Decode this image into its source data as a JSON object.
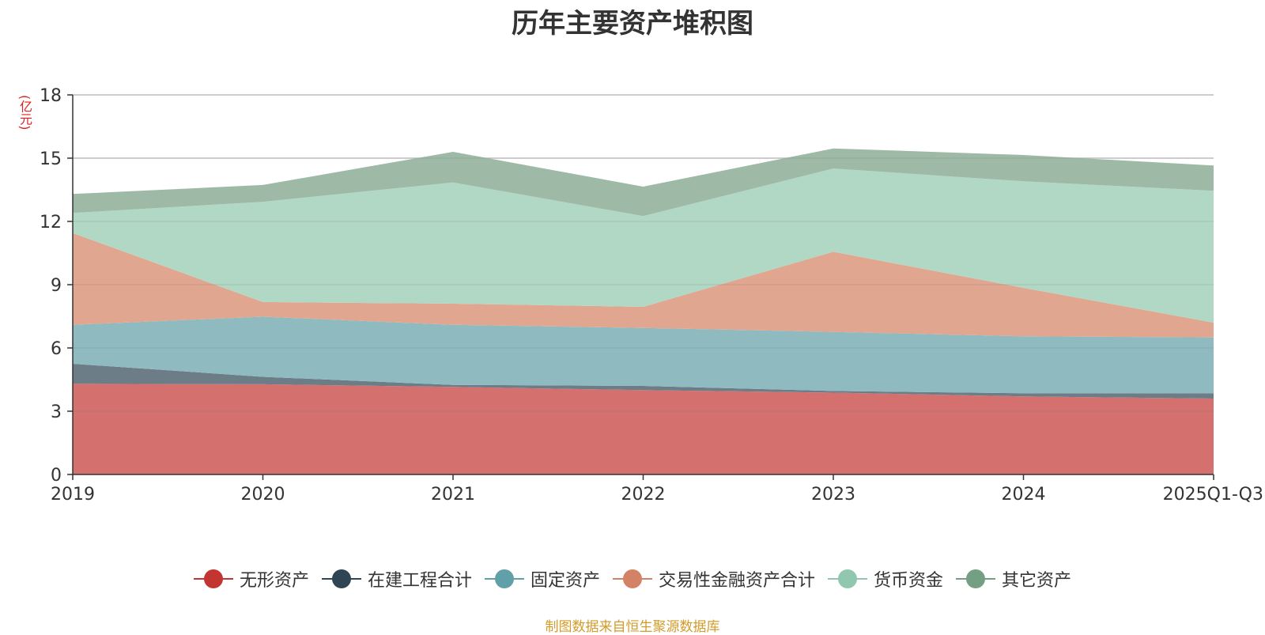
{
  "chart_data": {
    "type": "area",
    "stacked": true,
    "title": "历年主要资产堆积图",
    "ylabel": "(亿元)",
    "ylim": [
      0,
      18
    ],
    "yticks": [
      0,
      3,
      6,
      9,
      12,
      15,
      18
    ],
    "categories": [
      "2019",
      "2020",
      "2021",
      "2022",
      "2023",
      "2024",
      "2025Q1-Q3"
    ],
    "series": [
      {
        "name": "无形资产",
        "color": "#c23531",
        "fill": "#d4706d",
        "values": [
          4.3,
          4.28,
          4.15,
          4.0,
          3.88,
          3.7,
          3.6
        ]
      },
      {
        "name": "在建工程合计",
        "color": "#2f4554",
        "fill": "#6d7d88",
        "values": [
          0.95,
          0.35,
          0.1,
          0.2,
          0.08,
          0.15,
          0.25
        ]
      },
      {
        "name": "固定资产",
        "color": "#61a0a8",
        "fill": "#8fbac0",
        "values": [
          1.85,
          2.85,
          2.85,
          2.75,
          2.8,
          2.7,
          2.65
        ]
      },
      {
        "name": "交易性金融资产合计",
        "color": "#d48265",
        "fill": "#e0a690",
        "values": [
          4.35,
          0.7,
          1.0,
          1.0,
          3.8,
          2.3,
          0.7
        ]
      },
      {
        "name": "货币资金",
        "color": "#91c7ae",
        "fill": "#b1d8c5",
        "values": [
          0.95,
          4.75,
          5.75,
          4.3,
          3.95,
          5.05,
          6.25
        ]
      },
      {
        "name": "其它资产",
        "color": "#749f83",
        "fill": "#9ebaa6",
        "values": [
          0.9,
          0.8,
          1.45,
          1.4,
          0.95,
          1.25,
          1.2
        ]
      }
    ]
  },
  "source_note": "制图数据来自恒生聚源数据库"
}
